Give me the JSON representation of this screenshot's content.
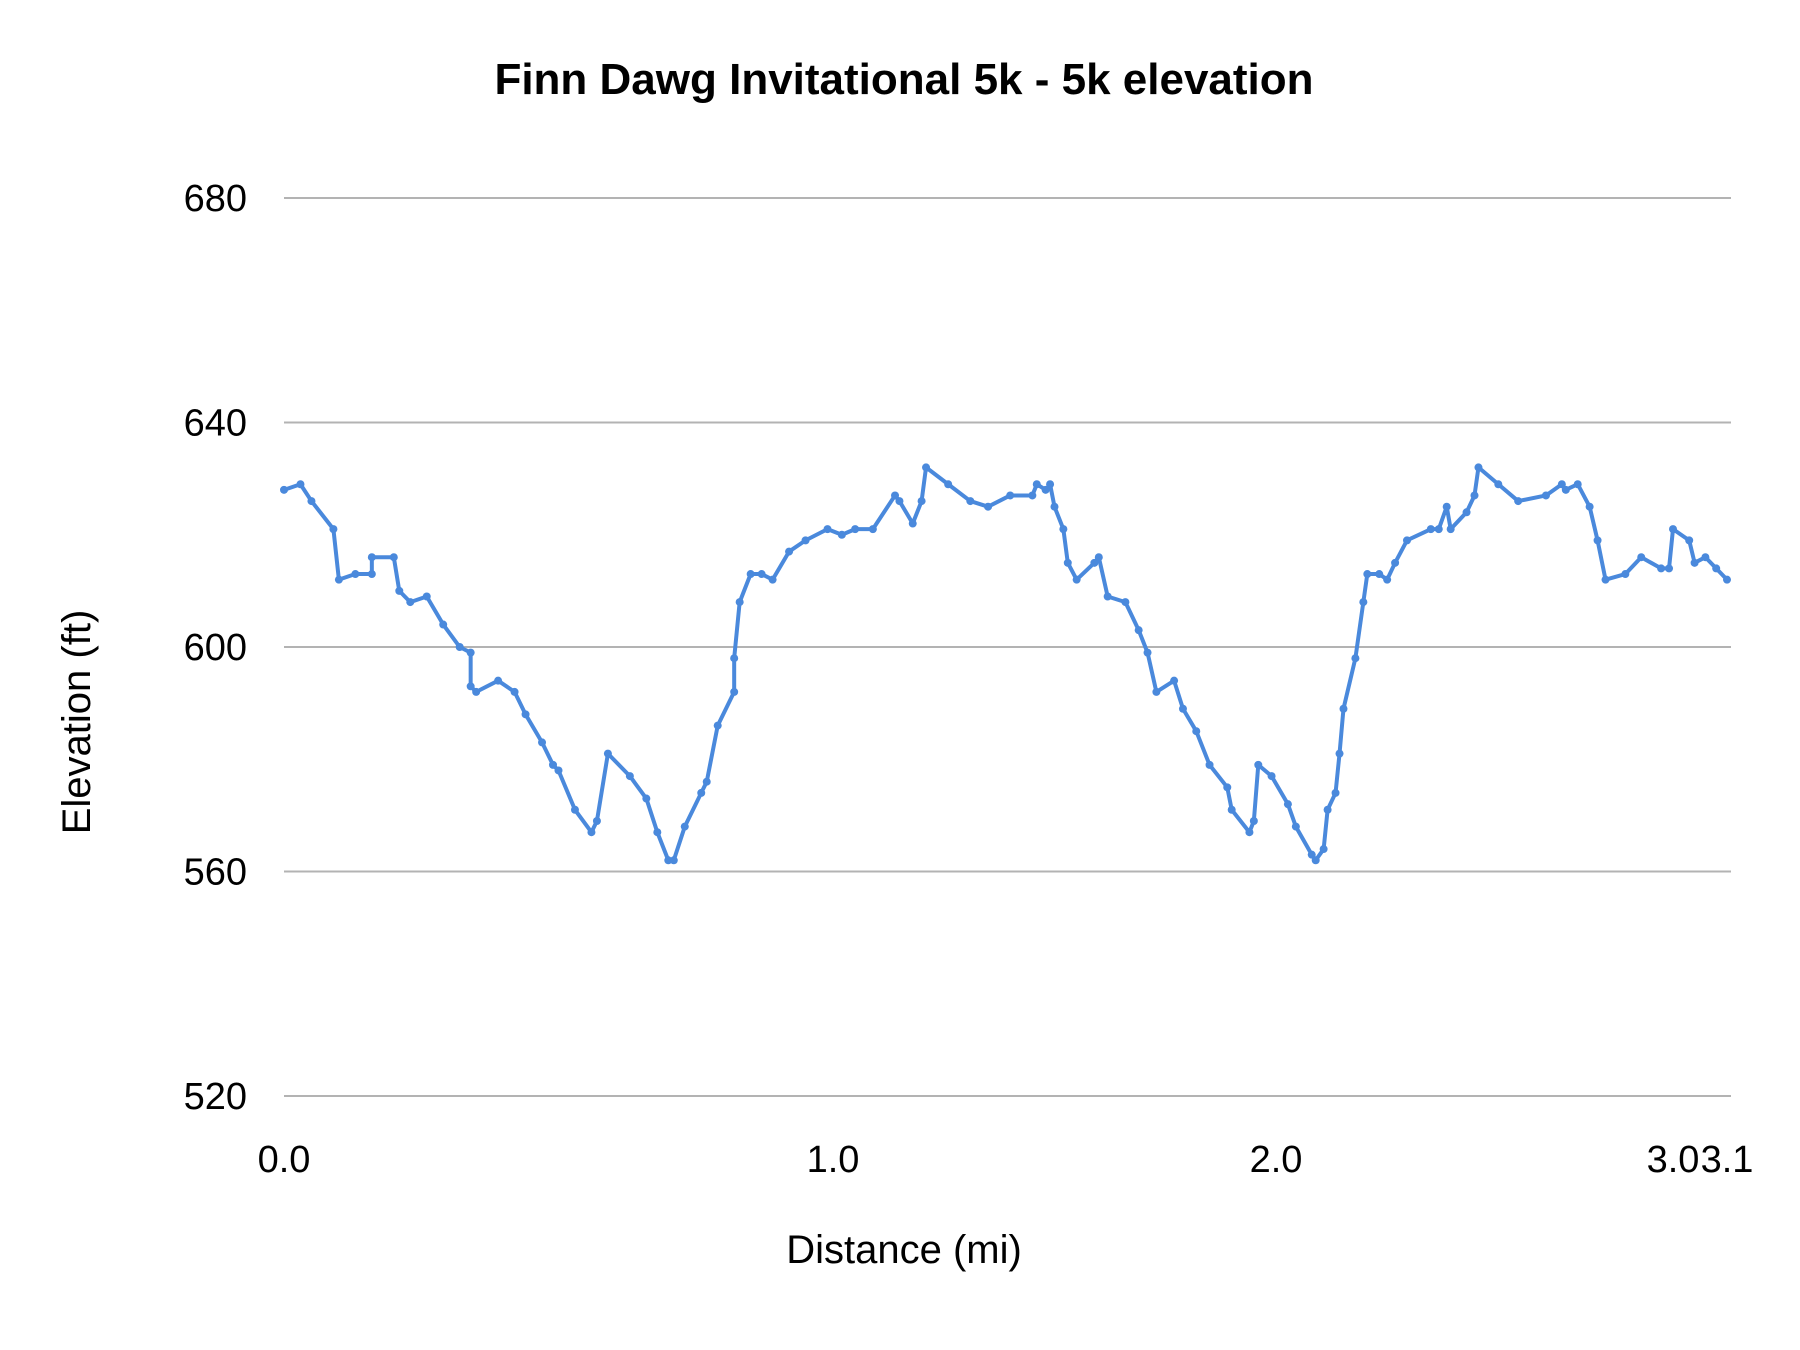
{
  "chart_data": {
    "type": "line",
    "title": "Finn Dawg Invitational 5k - 5k elevation",
    "xlabel": "Distance (mi)",
    "ylabel": "Elevation (ft)",
    "ylim": [
      520,
      680
    ],
    "yticks": [
      "520",
      "560",
      "600",
      "640",
      "680"
    ],
    "xticks": [
      {
        "label": "0.0",
        "value": 0.0
      },
      {
        "label": "1.0",
        "value": 1.0
      },
      {
        "label": "2.0",
        "value": 2.0
      },
      {
        "label": "3.0",
        "value": 3.0
      },
      {
        "label": "3.1",
        "value": 3.1
      }
    ],
    "grid": true,
    "legend": "none",
    "line_color": "#4a89dc",
    "grid_color": "#b3b3b3",
    "x": [
      0.0,
      0.03,
      0.05,
      0.09,
      0.1,
      0.13,
      0.16,
      0.16,
      0.2,
      0.21,
      0.23,
      0.26,
      0.29,
      0.32,
      0.34,
      0.34,
      0.35,
      0.39,
      0.42,
      0.44,
      0.47,
      0.49,
      0.5,
      0.53,
      0.56,
      0.57,
      0.59,
      0.63,
      0.66,
      0.68,
      0.7,
      0.71,
      0.73,
      0.76,
      0.77,
      0.79,
      0.82,
      0.82,
      0.83,
      0.85,
      0.87,
      0.89,
      0.92,
      0.95,
      0.99,
      1.02,
      1.05,
      1.09,
      1.14,
      1.15,
      1.18,
      1.2,
      1.21,
      1.26,
      1.31,
      1.35,
      1.4,
      1.45,
      1.46,
      1.48,
      1.49,
      1.5,
      1.52,
      1.53,
      1.55,
      1.59,
      1.6,
      1.62,
      1.66,
      1.69,
      1.71,
      1.73,
      1.77,
      1.79,
      1.82,
      1.85,
      1.89,
      1.9,
      1.94,
      1.95,
      1.96,
      1.99,
      2.03,
      2.05,
      2.09,
      2.1,
      2.12,
      2.13,
      2.15,
      2.16,
      2.17,
      2.2,
      2.22,
      2.23,
      2.26,
      2.28,
      2.3,
      2.33,
      2.39,
      2.41,
      2.43,
      2.44,
      2.48,
      2.5,
      2.51,
      2.56,
      2.61,
      2.68,
      2.72,
      2.73,
      2.76,
      2.79,
      2.81,
      2.83,
      2.88,
      2.92,
      2.97,
      2.99,
      3.0,
      3.03,
      3.04,
      3.06,
      3.08,
      3.1
    ],
    "y": [
      628,
      629,
      626,
      621,
      612,
      613,
      613,
      616,
      616,
      610,
      608,
      609,
      604,
      600,
      599,
      593,
      592,
      594,
      592,
      588,
      583,
      579,
      578,
      571,
      567,
      569,
      581,
      577,
      573,
      567,
      562,
      562,
      568,
      574,
      576,
      586,
      592,
      598,
      608,
      613,
      613,
      612,
      617,
      619,
      621,
      620,
      621,
      621,
      627,
      626,
      622,
      626,
      632,
      629,
      626,
      625,
      627,
      627,
      629,
      628,
      629,
      625,
      621,
      615,
      612,
      615,
      616,
      609,
      608,
      603,
      599,
      592,
      594,
      589,
      585,
      579,
      575,
      571,
      567,
      569,
      579,
      577,
      572,
      568,
      563,
      562,
      564,
      571,
      574,
      581,
      589,
      598,
      608,
      613,
      613,
      612,
      615,
      619,
      621,
      621,
      625,
      621,
      624,
      627,
      632,
      629,
      626,
      627,
      629,
      628,
      629,
      625,
      619,
      612,
      613,
      616,
      614,
      614,
      621,
      619,
      615,
      616,
      614,
      612
    ]
  }
}
